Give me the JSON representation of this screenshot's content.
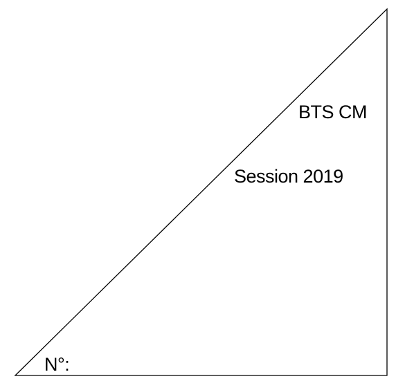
{
  "form": {
    "program": "BTS CM",
    "session": "Session 2019",
    "number_label": "N°:"
  },
  "colors": {
    "line": "#000000",
    "background": "#ffffff",
    "text": "#000000"
  }
}
